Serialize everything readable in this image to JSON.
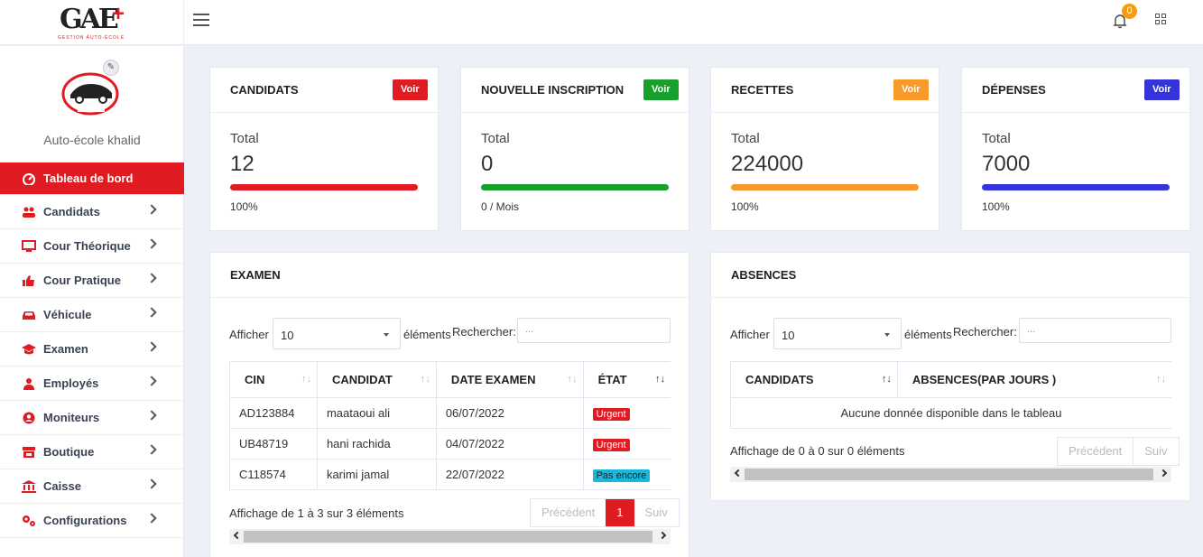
{
  "brand": {
    "logo_text": "GAE",
    "logo_plus": "+",
    "logo_sub": "GESTION AUTO-ÉCOLE"
  },
  "header": {
    "notifications_count": "0"
  },
  "sidebar": {
    "school_name": "Auto-école khalid",
    "items": [
      {
        "label": "Tableau de bord",
        "icon": "dashboard-icon"
      },
      {
        "label": "Candidats",
        "icon": "users-icon"
      },
      {
        "label": "Cour Théorique",
        "icon": "monitor-icon"
      },
      {
        "label": "Cour Pratique",
        "icon": "thumbs-up-icon"
      },
      {
        "label": "Véhicule",
        "icon": "car-icon"
      },
      {
        "label": "Examen",
        "icon": "graduation-cap-icon"
      },
      {
        "label": "Employés",
        "icon": "user-icon"
      },
      {
        "label": "Moniteurs",
        "icon": "user-circle-icon"
      },
      {
        "label": "Boutique",
        "icon": "store-icon"
      },
      {
        "label": "Caisse",
        "icon": "bank-icon"
      },
      {
        "label": "Configurations",
        "icon": "cogs-icon"
      }
    ]
  },
  "stats": [
    {
      "title": "CANDIDATS",
      "button": "Voir",
      "color": "#e01b22",
      "total_label": "Total",
      "value": "12",
      "footer": "100%"
    },
    {
      "title": "NOUVELLE INSCRIPTION",
      "button": "Voir",
      "color": "#17a12c",
      "total_label": "Total",
      "value": "0",
      "footer": "0 / Mois"
    },
    {
      "title": "RECETTES",
      "button": "Voir",
      "color": "#f79a2a",
      "total_label": "Total",
      "value": "224000",
      "footer": "100%"
    },
    {
      "title": "DÉPENSES",
      "button": "Voir",
      "color": "#3534d8",
      "total_label": "Total",
      "value": "7000",
      "footer": "100%"
    }
  ],
  "examen": {
    "title": "EXAMEN",
    "show_label": "Afficher",
    "show_value": "10",
    "elements_label": "éléments",
    "search_label": "Rechercher:",
    "search_placeholder": "...",
    "columns": [
      "CIN",
      "CANDIDAT",
      "DATE EXAMEN",
      "ÉTAT"
    ],
    "rows": [
      {
        "cin": "AD123884",
        "candidat": "maataoui ali",
        "date": "06/07/2022",
        "etat": "Urgent",
        "etat_color": "#e01b22"
      },
      {
        "cin": "UB48719",
        "candidat": "hani rachida",
        "date": "04/07/2022",
        "etat": "Urgent",
        "etat_color": "#e01b22"
      },
      {
        "cin": "C118574",
        "candidat": "karimi jamal",
        "date": "22/07/2022",
        "etat": "Pas encore",
        "etat_color": "#17b8dc"
      }
    ],
    "info": "Affichage de 1 à 3 sur 3 éléments",
    "prev": "Précédent",
    "page": "1",
    "next": "Suiv"
  },
  "absences": {
    "title": "ABSENCES",
    "show_label": "Afficher",
    "show_value": "10",
    "elements_label": "éléments",
    "search_label": "Rechercher:",
    "search_placeholder": "...",
    "columns": [
      "CANDIDATS",
      "ABSENCES(PAR JOURS )"
    ],
    "empty": "Aucune donnée disponible dans le tableau",
    "info": "Affichage de 0 à 0 sur 0 éléments",
    "prev": "Précédent",
    "next": "Suiv"
  }
}
